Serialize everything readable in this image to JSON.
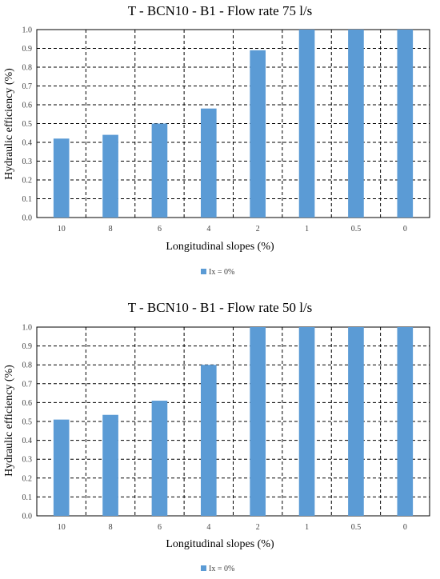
{
  "chart_data": [
    {
      "type": "bar",
      "title": "T - BCN10 - B1 - Flow rate 75 l/s",
      "xlabel": "Longitudinal slopes (%)",
      "ylabel": "Hydraulic efficiency  (%)",
      "categories": [
        "10",
        "8",
        "6",
        "4",
        "2",
        "1",
        "0.5",
        "0"
      ],
      "series": [
        {
          "name": "Ix = 0%",
          "values": [
            0.42,
            0.44,
            0.5,
            0.58,
            0.89,
            1.0,
            1.0,
            1.0
          ],
          "color": "#5b9bd5"
        }
      ],
      "ylim": [
        0,
        1.0
      ],
      "yticks": [
        "0.0",
        "0.1",
        "0.2",
        "0.3",
        "0.4",
        "0.5",
        "0.6",
        "0.7",
        "0.8",
        "0.9",
        "1.0"
      ],
      "grid": true,
      "legend_position": "bottom"
    },
    {
      "type": "bar",
      "title": "T - BCN10 - B1 - Flow rate 50 l/s",
      "xlabel": "Longitudinal slopes (%)",
      "ylabel": "Hydraulic efficiency  (%)",
      "categories": [
        "10",
        "8",
        "6",
        "4",
        "2",
        "1",
        "0.5",
        "0"
      ],
      "series": [
        {
          "name": "Ix = 0%",
          "values": [
            0.51,
            0.535,
            0.61,
            0.8,
            1.0,
            1.0,
            1.0,
            1.0
          ],
          "color": "#5b9bd5"
        }
      ],
      "ylim": [
        0,
        1.0
      ],
      "yticks": [
        "0.0",
        "0.1",
        "0.2",
        "0.3",
        "0.4",
        "0.5",
        "0.6",
        "0.7",
        "0.8",
        "0.9",
        "1.0"
      ],
      "grid": true,
      "legend_position": "bottom"
    }
  ]
}
